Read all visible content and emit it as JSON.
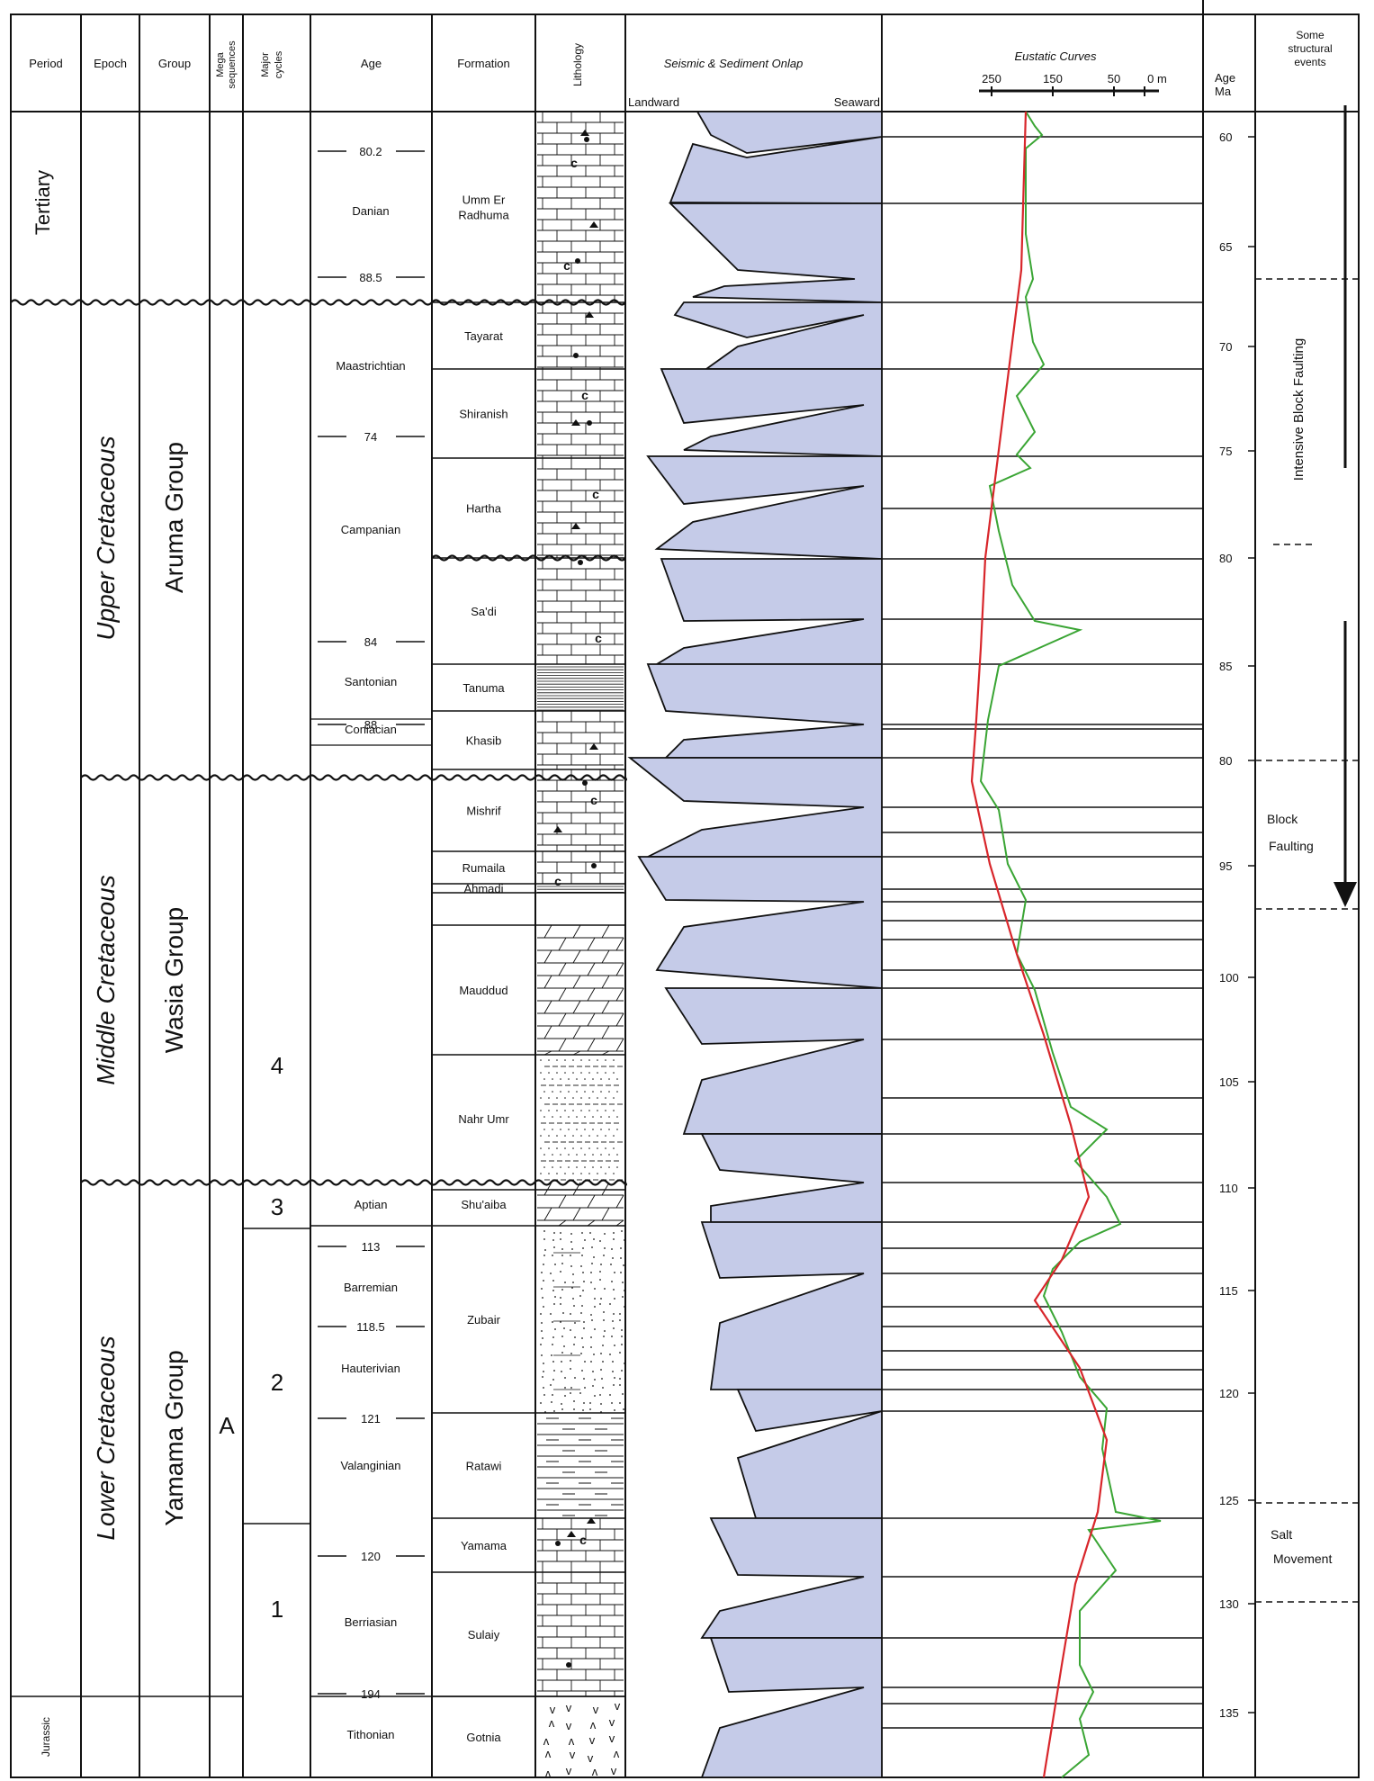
{
  "headers": {
    "period": "Period",
    "epoch": "Epoch",
    "group": "Group",
    "mega": [
      "Mega",
      "sequences"
    ],
    "major": [
      "Major",
      "cycles"
    ],
    "age": "Age",
    "formation": "Formation",
    "lithology": "Lithology",
    "seismic": "Seismic & Sediment Onlap",
    "landward": "Landward",
    "seaward": "Seaward",
    "eustatic": "Eustatic Curves",
    "eustatic_ticks": [
      "250",
      "150",
      "50",
      "0 m"
    ],
    "age_ma": [
      "Age",
      "Ma"
    ],
    "events": [
      "Some",
      "structural",
      "events"
    ]
  },
  "periods": [
    {
      "id": "tertiary",
      "label": "Tertiary"
    },
    {
      "id": "jurassic",
      "label": "Jurassic"
    }
  ],
  "epochs": [
    {
      "id": "upper",
      "label": "Upper Cretaceous"
    },
    {
      "id": "middle",
      "label": "Middle Cretaceous"
    },
    {
      "id": "lower",
      "label": "Lower Cretaceous"
    }
  ],
  "groups": [
    {
      "id": "aruma",
      "label": "Aruma Group"
    },
    {
      "id": "wasia",
      "label": "Wasia Group"
    },
    {
      "id": "yamama",
      "label": "Yamama Group"
    }
  ],
  "mega_sequence": "A",
  "major_cycles": [
    "4",
    "3",
    "2",
    "1"
  ],
  "age_markers": [
    "80.2",
    "88.5",
    "74",
    "84",
    "88",
    "113",
    "118.5",
    "121",
    "120",
    "194"
  ],
  "stages": [
    "Danian",
    "Maastrichtian",
    "Campanian",
    "Santonian",
    "Coniacian",
    "Aptian",
    "Barremian",
    "Hauterivian",
    "Valanginian",
    "Berriasian",
    "Tithonian"
  ],
  "formations": [
    {
      "name": "Umm Er Radhuma",
      "lines": [
        "Umm Er",
        "Radhuma"
      ],
      "lith": "limestone"
    },
    {
      "name": "Tayarat",
      "lines": [
        "Tayarat"
      ],
      "lith": "limestone"
    },
    {
      "name": "Shiranish",
      "lines": [
        "Shiranish"
      ],
      "lith": "limestone"
    },
    {
      "name": "Hartha",
      "lines": [
        "Hartha"
      ],
      "lith": "limestone"
    },
    {
      "name": "Sa'di",
      "lines": [
        "Sa'di"
      ],
      "lith": "limestone"
    },
    {
      "name": "Tanuma",
      "lines": [
        "Tanuma"
      ],
      "lith": "shale"
    },
    {
      "name": "Khasib",
      "lines": [
        "Khasib"
      ],
      "lith": "limestone"
    },
    {
      "name": "Mishrif",
      "lines": [
        "Mishrif"
      ],
      "lith": "limestone"
    },
    {
      "name": "Rumaila",
      "lines": [
        "Rumaila"
      ],
      "lith": "limestone"
    },
    {
      "name": "Ahmadi",
      "lines": [
        "Ahmadi"
      ],
      "lith": "shale"
    },
    {
      "name": "Mauddud",
      "lines": [
        "Mauddud"
      ],
      "lith": "dolomite"
    },
    {
      "name": "Nahr Umr",
      "lines": [
        "Nahr Umr"
      ],
      "lith": "sandshale"
    },
    {
      "name": "Shu'aiba",
      "lines": [
        "Shu'aiba"
      ],
      "lith": "dolomite"
    },
    {
      "name": "Zubair",
      "lines": [
        "Zubair"
      ],
      "lith": "sandstone"
    },
    {
      "name": "Ratawi",
      "lines": [
        "Ratawi"
      ],
      "lith": "marl"
    },
    {
      "name": "Yamama",
      "lines": [
        "Yamama"
      ],
      "lith": "limestone"
    },
    {
      "name": "Sulaiy",
      "lines": [
        "Sulaiy"
      ],
      "lith": "limestone"
    },
    {
      "name": "Gotnia",
      "lines": [
        "Gotnia"
      ],
      "lith": "anhydrite"
    }
  ],
  "age_ticks": [
    "60",
    "65",
    "70",
    "75",
    "80",
    "85",
    "80",
    "95",
    "100",
    "105",
    "110",
    "115",
    "120",
    "125",
    "130",
    "135"
  ],
  "events": [
    {
      "id": "intensive",
      "label": "Intensive Block Faulting",
      "lines": [
        "Intensive Block Faulting"
      ]
    },
    {
      "id": "block",
      "label": "Block Faulting",
      "lines": [
        "Block",
        "Faulting"
      ]
    },
    {
      "id": "salt",
      "label": "Salt Movement",
      "lines": [
        "Salt",
        "Movement"
      ]
    }
  ],
  "colors": {
    "onlap_fill": "#c5cbe8",
    "long_term_curve": "#d8262b",
    "short_term_curve": "#3aa534",
    "line": "#111111"
  }
}
